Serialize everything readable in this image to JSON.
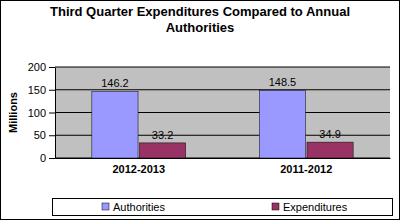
{
  "chart_data": {
    "type": "bar",
    "title": "Third Quarter Expenditures Compared to Annual Authorities",
    "y_label": "Millions",
    "categories": [
      "2012-2013",
      "2011-2012"
    ],
    "series": [
      {
        "name": "Authorities",
        "color": "#9999ff",
        "values": [
          146.2,
          148.5
        ]
      },
      {
        "name": "Expenditures",
        "color": "#993366",
        "values": [
          33.2,
          34.9
        ]
      }
    ],
    "ylim": [
      0,
      200
    ],
    "yticks": [
      0,
      50,
      100,
      150,
      200
    ],
    "grid": true,
    "legend": "bottom",
    "data_labels": true
  }
}
